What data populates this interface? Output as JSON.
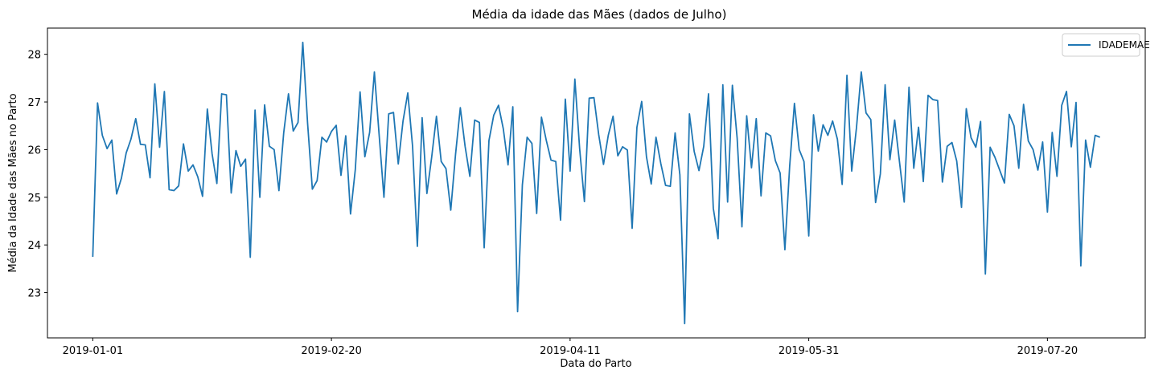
{
  "chart_data": {
    "type": "line",
    "title": "Média da idade das Mães (dados de Julho)",
    "xlabel": "Data do Parto",
    "ylabel": "Média da Idade das Mães no Parto",
    "x_start": "2019-01-01",
    "x_end": "2019-07-31",
    "x_ticks": [
      "2019-01-01",
      "2019-02-20",
      "2019-04-11",
      "2019-05-31",
      "2019-07-20"
    ],
    "y_ticks": [
      23,
      24,
      25,
      26,
      27,
      28
    ],
    "ylim": [
      22.05,
      28.55
    ],
    "legend_position": "top-right",
    "series": [
      {
        "name": "IDADEMAE",
        "color": "#1f77b4",
        "values": [
          23.75,
          26.98,
          26.3,
          26.02,
          26.2,
          25.07,
          25.4,
          25.93,
          26.22,
          26.65,
          26.11,
          26.1,
          25.41,
          27.38,
          26.05,
          27.22,
          25.16,
          25.14,
          25.24,
          26.12,
          25.55,
          25.68,
          25.43,
          25.02,
          26.85,
          25.91,
          25.29,
          27.17,
          27.15,
          25.09,
          25.98,
          25.65,
          25.8,
          23.74,
          26.83,
          25.0,
          26.94,
          26.07,
          26.0,
          25.14,
          26.35,
          27.17,
          26.39,
          26.57,
          28.25,
          26.56,
          25.17,
          25.35,
          26.26,
          26.16,
          26.38,
          26.51,
          25.46,
          26.29,
          24.65,
          25.58,
          27.21,
          25.85,
          26.36,
          27.63,
          26.3,
          25.0,
          26.75,
          26.78,
          25.7,
          26.6,
          27.19,
          26.07,
          23.97,
          26.67,
          25.08,
          25.84,
          26.7,
          25.75,
          25.6,
          24.73,
          25.9,
          26.88,
          26.07,
          25.44,
          26.62,
          26.57,
          23.94,
          26.19,
          26.72,
          26.93,
          26.44,
          25.68,
          26.9,
          22.6,
          25.26,
          26.26,
          26.13,
          24.66,
          26.68,
          26.2,
          25.78,
          25.75,
          24.52,
          27.06,
          25.55,
          27.48,
          26.02,
          24.91,
          27.08,
          27.09,
          26.31,
          25.69,
          26.3,
          26.7,
          25.87,
          26.06,
          25.99,
          24.35,
          26.47,
          27.01,
          25.85,
          25.28,
          26.26,
          25.71,
          25.25,
          25.23,
          26.35,
          25.47,
          22.35,
          26.75,
          25.96,
          25.56,
          26.07,
          27.17,
          24.77,
          24.13,
          27.36,
          24.9,
          27.35,
          26.24,
          24.38,
          26.71,
          25.62,
          26.65,
          25.03,
          26.35,
          26.29,
          25.77,
          25.51,
          23.9,
          25.65,
          26.97,
          26.0,
          25.75,
          24.19,
          26.73,
          25.97,
          26.52,
          26.3,
          26.6,
          26.22,
          25.27,
          27.56,
          25.55,
          26.46,
          27.63,
          26.77,
          26.63,
          24.89,
          25.49,
          27.36,
          25.79,
          26.62,
          25.75,
          24.9,
          27.31,
          25.61,
          26.47,
          25.33,
          27.14,
          27.05,
          27.03,
          25.32,
          26.07,
          26.15,
          25.76,
          24.79,
          26.86,
          26.25,
          26.05,
          26.59,
          23.39,
          26.05,
          25.84,
          25.57,
          25.3,
          26.74,
          26.5,
          25.61,
          26.95,
          26.18,
          26.0,
          25.57,
          26.16,
          24.69,
          26.36,
          25.44,
          26.93,
          27.22,
          26.06,
          26.99,
          23.56,
          26.2,
          25.63,
          26.3,
          26.26
        ]
      }
    ]
  }
}
